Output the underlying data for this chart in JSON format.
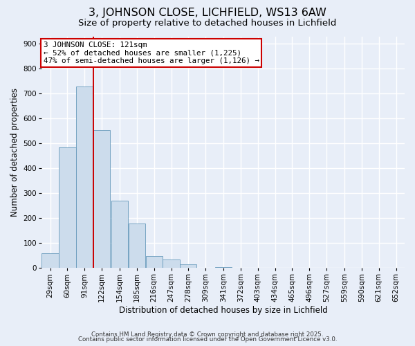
{
  "title": "3, JOHNSON CLOSE, LICHFIELD, WS13 6AW",
  "subtitle": "Size of property relative to detached houses in Lichfield",
  "xlabel": "Distribution of detached houses by size in Lichfield",
  "ylabel": "Number of detached properties",
  "footer_line1": "Contains HM Land Registry data © Crown copyright and database right 2025.",
  "footer_line2": "Contains public sector information licensed under the Open Government Licence v3.0.",
  "bins": [
    29,
    60,
    91,
    122,
    154,
    185,
    216,
    247,
    278,
    309,
    341,
    372,
    403,
    434,
    465,
    496,
    527,
    559,
    590,
    621,
    652
  ],
  "bin_labels": [
    "29sqm",
    "60sqm",
    "91sqm",
    "122sqm",
    "154sqm",
    "185sqm",
    "216sqm",
    "247sqm",
    "278sqm",
    "309sqm",
    "341sqm",
    "372sqm",
    "403sqm",
    "434sqm",
    "465sqm",
    "496sqm",
    "527sqm",
    "559sqm",
    "590sqm",
    "621sqm",
    "652sqm"
  ],
  "values": [
    58,
    483,
    730,
    553,
    270,
    178,
    49,
    33,
    14,
    0,
    5,
    0,
    0,
    0,
    0,
    0,
    0,
    0,
    0,
    0
  ],
  "bar_color": "#ccdcec",
  "bar_edge_color": "#6699bb",
  "vline_x": 122,
  "vline_color": "#cc0000",
  "annotation_title": "3 JOHNSON CLOSE: 121sqm",
  "annotation_line2": "← 52% of detached houses are smaller (1,225)",
  "annotation_line3": "47% of semi-detached houses are larger (1,126) →",
  "annotation_box_color": "#ffffff",
  "annotation_box_edge": "#cc0000",
  "ylim": [
    0,
    930
  ],
  "yticks": [
    0,
    100,
    200,
    300,
    400,
    500,
    600,
    700,
    800,
    900
  ],
  "bg_color": "#e8eef8",
  "grid_color": "#ffffff",
  "title_fontsize": 11.5,
  "subtitle_fontsize": 9.5,
  "axis_label_fontsize": 8.5,
  "tick_fontsize": 7.5,
  "footer_fontsize": 6.2
}
